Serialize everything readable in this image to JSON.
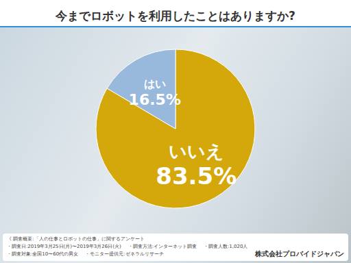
{
  "chart_data": {
    "type": "pie",
    "title": "今までロボットを利用したことはありますか?",
    "categories": [
      "いいえ",
      "はい"
    ],
    "values": [
      83.5,
      16.5
    ],
    "value_labels": [
      "83.5%",
      "16.5%"
    ],
    "colors": [
      "#d4a80a",
      "#98b8dc"
    ],
    "data_labels": true
  },
  "footer": {
    "lines": [
      [
        "《 調査概要:「人の仕事とロボットの仕事」に関するアンケート"
      ],
      [
        "・調査日:2019年3月25日(月)〜2019年3月26日(火)",
        "・調査方法:インターネット調査",
        "・調査人数:1,020人"
      ],
      [
        "・調査対象:全国10〜60代の男女",
        "・モニター提供元:ゼネラルリサーチ"
      ]
    ],
    "company": "株式会社プロバイドジャパン"
  }
}
